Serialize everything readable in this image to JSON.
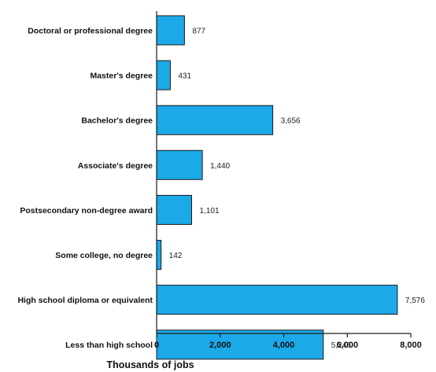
{
  "chart_data": {
    "type": "bar",
    "orientation": "horizontal",
    "categories": [
      "Doctoral or professional degree",
      "Master's degree",
      "Bachelor's degree",
      "Associate's degree",
      "Postsecondary non-degree award",
      "Some college, no degree",
      "High school diploma or equivalent",
      "Less than high school"
    ],
    "values": [
      877,
      431,
      3656,
      1440,
      1101,
      142,
      7576,
      5246
    ],
    "value_labels": [
      "877",
      "431",
      "3,656",
      "1,440",
      "1,101",
      "142",
      "7,576",
      "5,246"
    ],
    "xlabel": "Thousands of jobs",
    "xlim": [
      0,
      8000
    ],
    "xticks": [
      0,
      2000,
      4000,
      6000,
      8000
    ],
    "xtick_labels": [
      "0",
      "2,000",
      "4,000",
      "6,000",
      "8,000"
    ],
    "grid": false,
    "bar_color": "#1BA9E8",
    "bar_edge_color": "#1a1a1a"
  }
}
